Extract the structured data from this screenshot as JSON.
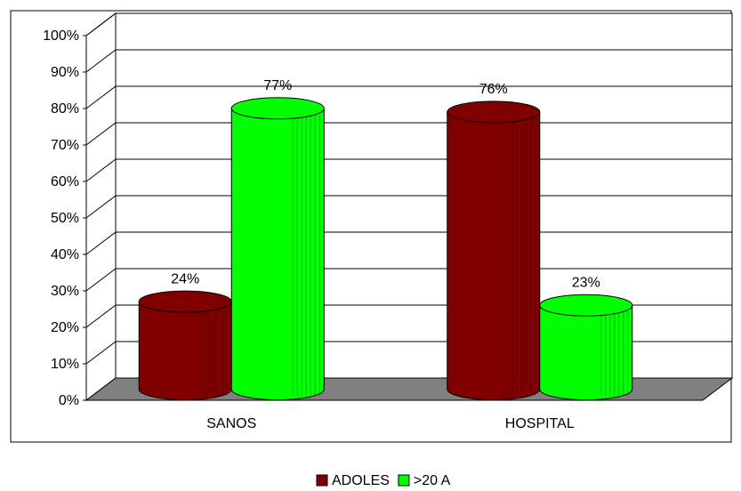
{
  "chart_data": {
    "type": "bar3d_cylinder",
    "categories": [
      "SANOS",
      "HOSPITAL"
    ],
    "series": [
      {
        "name": "ADOLES",
        "color": "#800000",
        "values": [
          24,
          76
        ],
        "value_labels": [
          "24%",
          "76%"
        ]
      },
      {
        "name": ">20 A",
        "color": "#00ff00",
        "values": [
          77,
          23
        ],
        "value_labels": [
          "77%",
          "23%"
        ]
      }
    ],
    "ylim": [
      0,
      100
    ],
    "yticks": [
      {
        "value": 0,
        "label": "0%"
      },
      {
        "value": 10,
        "label": "10%"
      },
      {
        "value": 20,
        "label": "20%"
      },
      {
        "value": 30,
        "label": "30%"
      },
      {
        "value": 40,
        "label": "40%"
      },
      {
        "value": 50,
        "label": "50%"
      },
      {
        "value": 60,
        "label": "60%"
      },
      {
        "value": 70,
        "label": "70%"
      },
      {
        "value": 80,
        "label": "80%"
      },
      {
        "value": 90,
        "label": "90%"
      },
      {
        "value": 100,
        "label": "100%"
      }
    ],
    "grid": true,
    "legend": "bottom"
  }
}
